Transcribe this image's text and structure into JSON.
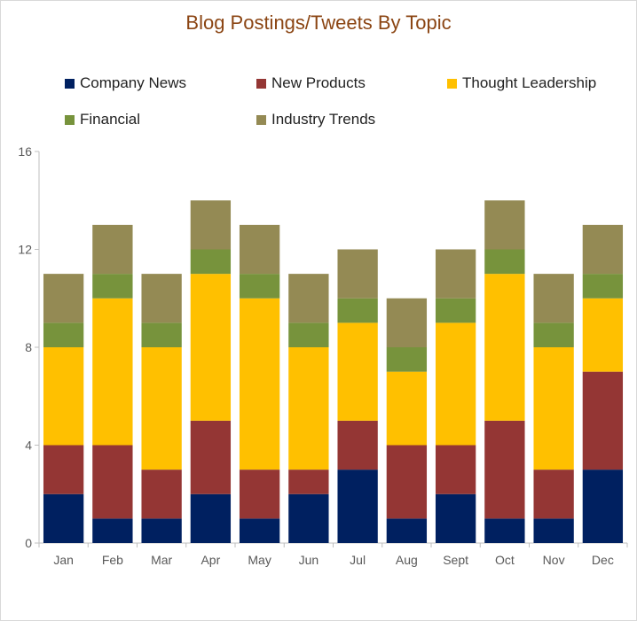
{
  "chart_data": {
    "type": "bar",
    "stacked": true,
    "title": "Blog Postings/Tweets By Topic",
    "xlabel": "",
    "ylabel": "",
    "ylim": [
      0,
      16
    ],
    "yticks": [
      0,
      4,
      8,
      12,
      16
    ],
    "grid": false,
    "legend_position": "top",
    "categories": [
      "Jan",
      "Feb",
      "Mar",
      "Apr",
      "May",
      "Jun",
      "Jul",
      "Aug",
      "Sept",
      "Oct",
      "Nov",
      "Dec"
    ],
    "series": [
      {
        "name": "Company News",
        "color": "#002060",
        "values": [
          2,
          1,
          1,
          2,
          1,
          2,
          3,
          1,
          2,
          1,
          1,
          3
        ]
      },
      {
        "name": "New Products",
        "color": "#943634",
        "values": [
          2,
          3,
          2,
          3,
          2,
          1,
          2,
          3,
          2,
          4,
          2,
          4
        ]
      },
      {
        "name": "Thought Leadership",
        "color": "#ffc000",
        "values": [
          4,
          6,
          5,
          6,
          7,
          5,
          4,
          3,
          5,
          6,
          5,
          3
        ]
      },
      {
        "name": "Financial",
        "color": "#77933c",
        "values": [
          1,
          1,
          1,
          1,
          1,
          1,
          1,
          1,
          1,
          1,
          1,
          1
        ]
      },
      {
        "name": "Industry Trends",
        "color": "#948a54",
        "values": [
          2,
          2,
          2,
          2,
          2,
          2,
          2,
          2,
          2,
          2,
          2,
          2
        ]
      }
    ]
  }
}
